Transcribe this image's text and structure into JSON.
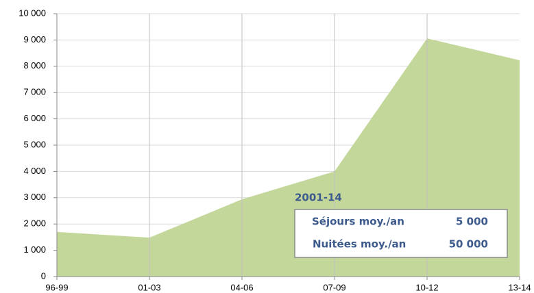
{
  "chart_data": {
    "type": "area",
    "categories": [
      "96-99",
      "01-03",
      "04-06",
      "07-09",
      "10-12",
      "13-14"
    ],
    "values": [
      1700,
      1480,
      2940,
      4000,
      9060,
      8230
    ],
    "color": "#c4d79b",
    "ylim": [
      0,
      10000
    ],
    "yticks": [
      0,
      {
        "value": 1000,
        "label": "1 000"
      },
      {
        "value": 2000,
        "label": "2 000"
      },
      {
        "value": 3000,
        "label": "3 000"
      },
      {
        "value": 4000,
        "label": "4 000"
      },
      {
        "value": 5000,
        "label": "5 000"
      },
      {
        "value": 6000,
        "label": "6 000"
      },
      {
        "value": 7000,
        "label": "7 000"
      },
      {
        "value": 8000,
        "label": "8 000"
      },
      {
        "value": 9000,
        "label": "9 000"
      },
      {
        "value": 10000,
        "label": "10 000"
      }
    ],
    "grid": true,
    "annotation": {
      "title": "2001-14",
      "rows": [
        [
          "Séjours moy./an",
          "5 000"
        ],
        [
          "Nuitées moy./an",
          "50 000"
        ]
      ]
    }
  }
}
